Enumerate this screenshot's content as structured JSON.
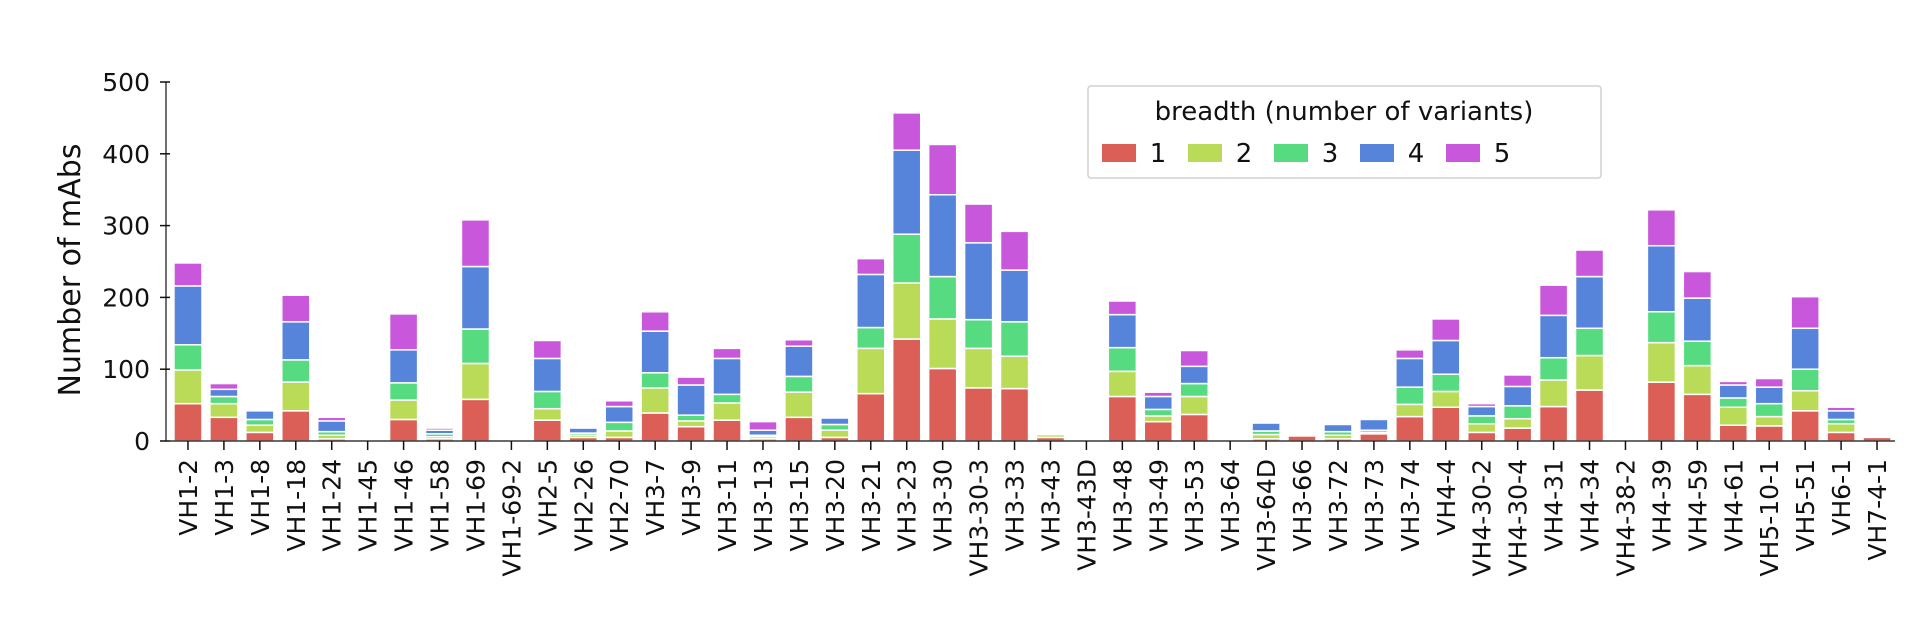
{
  "chart_data": {
    "type": "bar",
    "stacked": true,
    "ylabel": "Number of mAbs",
    "ylim": [
      0,
      500
    ],
    "yticks": [
      0,
      100,
      200,
      300,
      400,
      500
    ],
    "grid": false,
    "legend": {
      "title": "breadth (number of variants)",
      "placement": "top-right"
    },
    "categories": [
      "VH1-2",
      "VH1-3",
      "VH1-8",
      "VH1-18",
      "VH1-24",
      "VH1-45",
      "VH1-46",
      "VH1-58",
      "VH1-69",
      "VH1-69-2",
      "VH2-5",
      "VH2-26",
      "VH2-70",
      "VH3-7",
      "VH3-9",
      "VH3-11",
      "VH3-13",
      "VH3-15",
      "VH3-20",
      "VH3-21",
      "VH3-23",
      "VH3-30",
      "VH3-30-3",
      "VH3-33",
      "VH3-43",
      "VH3-43D",
      "VH3-48",
      "VH3-49",
      "VH3-53",
      "VH3-64",
      "VH3-64D",
      "VH3-66",
      "VH3-72",
      "VH3-73",
      "VH3-74",
      "VH4-4",
      "VH4-30-2",
      "VH4-30-4",
      "VH4-31",
      "VH4-34",
      "VH4-38-2",
      "VH4-39",
      "VH4-59",
      "VH4-61",
      "VH5-10-1",
      "VH5-51",
      "VH6-1",
      "VH7-4-1"
    ],
    "series": [
      {
        "name": "1",
        "color": "#db5f57",
        "values": [
          52,
          33,
          12,
          42,
          3,
          0,
          30,
          3,
          58,
          0,
          29,
          5,
          5,
          39,
          20,
          29,
          3,
          33,
          5,
          66,
          142,
          101,
          74,
          73,
          5,
          0,
          62,
          27,
          37,
          0,
          3,
          7,
          3,
          10,
          34,
          47,
          12,
          18,
          48,
          71,
          0,
          82,
          65,
          22,
          21,
          42,
          12,
          5
        ]
      },
      {
        "name": "2",
        "color": "#b9db57",
        "values": [
          47,
          19,
          10,
          40,
          5,
          0,
          27,
          3,
          50,
          0,
          16,
          3,
          9,
          35,
          8,
          24,
          3,
          35,
          10,
          63,
          78,
          69,
          55,
          45,
          4,
          0,
          35,
          8,
          25,
          0,
          6,
          0,
          5,
          2,
          17,
          22,
          12,
          13,
          37,
          48,
          0,
          55,
          40,
          25,
          13,
          28,
          12,
          0
        ]
      },
      {
        "name": "3",
        "color": "#57db80",
        "values": [
          35,
          10,
          8,
          31,
          5,
          0,
          24,
          4,
          48,
          0,
          24,
          3,
          12,
          21,
          8,
          12,
          2,
          22,
          8,
          29,
          68,
          59,
          40,
          48,
          2,
          0,
          33,
          9,
          18,
          0,
          5,
          0,
          5,
          3,
          24,
          24,
          11,
          18,
          31,
          38,
          0,
          43,
          34,
          13,
          18,
          30,
          6,
          0
        ]
      },
      {
        "name": "4",
        "color": "#5784db",
        "values": [
          82,
          10,
          12,
          53,
          15,
          0,
          46,
          5,
          87,
          0,
          46,
          7,
          22,
          58,
          42,
          50,
          7,
          42,
          9,
          74,
          117,
          114,
          107,
          72,
          0,
          0,
          46,
          18,
          24,
          0,
          11,
          0,
          10,
          15,
          40,
          47,
          13,
          27,
          59,
          72,
          0,
          92,
          60,
          18,
          23,
          57,
          12,
          0
        ]
      },
      {
        "name": "5",
        "color": "#c957db",
        "values": [
          32,
          8,
          0,
          37,
          5,
          0,
          50,
          3,
          65,
          0,
          25,
          0,
          8,
          27,
          11,
          14,
          12,
          9,
          0,
          22,
          52,
          70,
          54,
          54,
          0,
          0,
          19,
          6,
          22,
          0,
          0,
          0,
          0,
          0,
          12,
          30,
          4,
          16,
          42,
          37,
          0,
          50,
          37,
          5,
          12,
          44,
          5,
          0
        ]
      }
    ]
  }
}
